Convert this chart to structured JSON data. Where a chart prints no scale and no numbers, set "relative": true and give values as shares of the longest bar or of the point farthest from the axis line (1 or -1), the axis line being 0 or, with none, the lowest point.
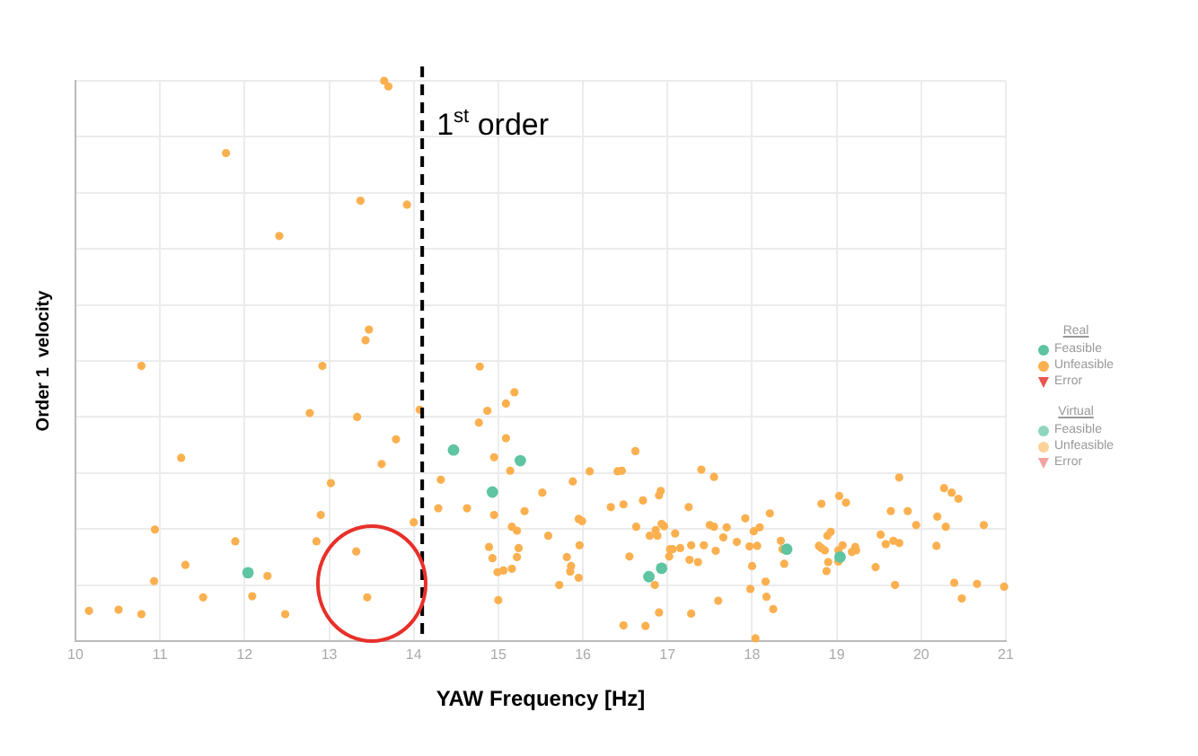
{
  "chart_data": {
    "type": "scatter",
    "xlabel": "YAW Frequency [Hz]",
    "ylabel": "Order 1  velocity",
    "relative": true,
    "xlim": [
      10,
      21
    ],
    "xticks": [
      10,
      11,
      12,
      13,
      14,
      15,
      16,
      17,
      18,
      19,
      20,
      21
    ],
    "grid": true,
    "legend": "right",
    "annotations": [
      "Real",
      "Virtual"
    ],
    "ref_lines": [
      {
        "axis": "x",
        "value": 14.1,
        "label": "1$^{st}$ order",
        "color": "#000000",
        "line_style": "dashed"
      }
    ],
    "series": [
      {
        "name": "Feasible",
        "color": "#5ec4a1",
        "marker": "circle",
        "x": [
          12.04,
          14.47,
          15.26,
          14.93,
          16.78,
          16.93,
          18.41,
          19.04
        ],
        "values": [
          0.122,
          0.341,
          0.322,
          0.266,
          0.115,
          0.13,
          0.164,
          0.15
        ]
      },
      {
        "name": "Unfeasible",
        "color": "#fbb04f",
        "marker": "circle",
        "x": [
          13.65,
          13.7,
          11.78,
          13.37,
          13.92,
          12.41,
          13.47,
          13.43,
          10.78,
          12.92,
          12.77,
          13.33,
          14.07,
          13.79,
          14.78,
          15.19,
          14.87,
          15.09,
          14.77,
          15.09,
          11.25,
          13.62,
          14.95,
          15.14,
          13.02,
          14.32,
          14.29,
          14.63,
          14.95,
          15.31,
          12.9,
          10.94,
          11.89,
          12.85,
          14.0,
          15.16,
          15.22,
          14.89,
          14.93,
          15.24,
          15.22,
          13.32,
          11.3,
          10.93,
          12.27,
          14.99,
          15.06,
          15.16,
          10.16,
          10.51,
          10.78,
          11.51,
          12.09,
          12.48,
          13.45,
          15.0,
          15.52,
          15.59,
          15.72,
          15.81,
          15.86,
          15.85,
          15.88,
          15.95,
          15.99,
          15.96,
          15.95,
          16.08,
          16.33,
          16.41,
          16.46,
          16.48,
          16.55,
          16.48,
          16.62,
          16.63,
          16.74,
          16.71,
          16.79,
          16.86,
          16.88,
          16.9,
          16.92,
          16.85,
          16.9,
          16.93,
          16.96,
          17.02,
          17.03,
          17.06,
          17.09,
          17.15,
          17.25,
          17.26,
          17.28,
          17.28,
          17.36,
          17.4,
          17.43,
          17.5,
          17.55,
          17.55,
          17.66,
          17.7,
          17.6,
          17.57,
          17.82,
          17.92,
          17.97,
          18.06,
          18.02,
          18.09,
          18.0,
          17.98,
          18.16,
          18.17,
          18.25,
          18.21,
          18.04,
          18.34,
          18.36,
          18.38,
          18.82,
          18.89,
          18.93,
          18.79,
          18.82,
          18.86,
          18.9,
          18.88,
          19.03,
          19.11,
          19.02,
          19.02,
          19.07,
          19.18,
          19.22,
          19.23,
          19.46,
          19.52,
          19.58,
          19.64,
          19.67,
          19.69,
          19.74,
          19.74,
          19.84,
          19.94,
          20.18,
          20.19,
          20.27,
          20.29,
          20.36,
          20.44,
          20.39,
          20.48,
          20.66,
          20.74,
          20.98
        ],
        "values": [
          1.0,
          0.99,
          0.871,
          0.786,
          0.779,
          0.723,
          0.556,
          0.537,
          0.491,
          0.491,
          0.407,
          0.4,
          0.413,
          0.36,
          0.49,
          0.444,
          0.411,
          0.424,
          0.39,
          0.362,
          0.327,
          0.316,
          0.328,
          0.304,
          0.282,
          0.288,
          0.237,
          0.237,
          0.225,
          0.232,
          0.225,
          0.199,
          0.178,
          0.178,
          0.212,
          0.204,
          0.197,
          0.168,
          0.148,
          0.166,
          0.15,
          0.16,
          0.136,
          0.107,
          0.116,
          0.123,
          0.126,
          0.129,
          0.054,
          0.056,
          0.048,
          0.078,
          0.08,
          0.048,
          0.078,
          0.073,
          0.265,
          0.188,
          0.1,
          0.15,
          0.134,
          0.124,
          0.285,
          0.218,
          0.214,
          0.171,
          0.113,
          0.303,
          0.239,
          0.303,
          0.304,
          0.244,
          0.151,
          0.028,
          0.339,
          0.204,
          0.027,
          0.251,
          0.188,
          0.198,
          0.188,
          0.26,
          0.268,
          0.1,
          0.051,
          0.209,
          0.205,
          0.151,
          0.164,
          0.164,
          0.192,
          0.166,
          0.239,
          0.145,
          0.171,
          0.049,
          0.141,
          0.306,
          0.171,
          0.207,
          0.204,
          0.293,
          0.185,
          0.203,
          0.072,
          0.161,
          0.177,
          0.219,
          0.169,
          0.17,
          0.196,
          0.203,
          0.134,
          0.093,
          0.106,
          0.079,
          0.057,
          0.228,
          0.005,
          0.179,
          0.164,
          0.138,
          0.245,
          0.188,
          0.195,
          0.17,
          0.166,
          0.162,
          0.141,
          0.125,
          0.259,
          0.247,
          0.162,
          0.142,
          0.171,
          0.159,
          0.168,
          0.162,
          0.132,
          0.19,
          0.173,
          0.232,
          0.179,
          0.1,
          0.292,
          0.175,
          0.232,
          0.207,
          0.17,
          0.222,
          0.273,
          0.204,
          0.265,
          0.254,
          0.104,
          0.076,
          0.102,
          0.207,
          0.097
        ]
      },
      {
        "name": "Error",
        "color": "#e8554e",
        "marker": "triangle"
      },
      {
        "name": "Feasible",
        "color": "#8fd6bd",
        "marker": "circle"
      },
      {
        "name": "Unfeasible",
        "color": "#fcd29a",
        "marker": "circle"
      },
      {
        "name": "Error",
        "color": "#f2a3a0",
        "marker": "triangle"
      }
    ]
  }
}
